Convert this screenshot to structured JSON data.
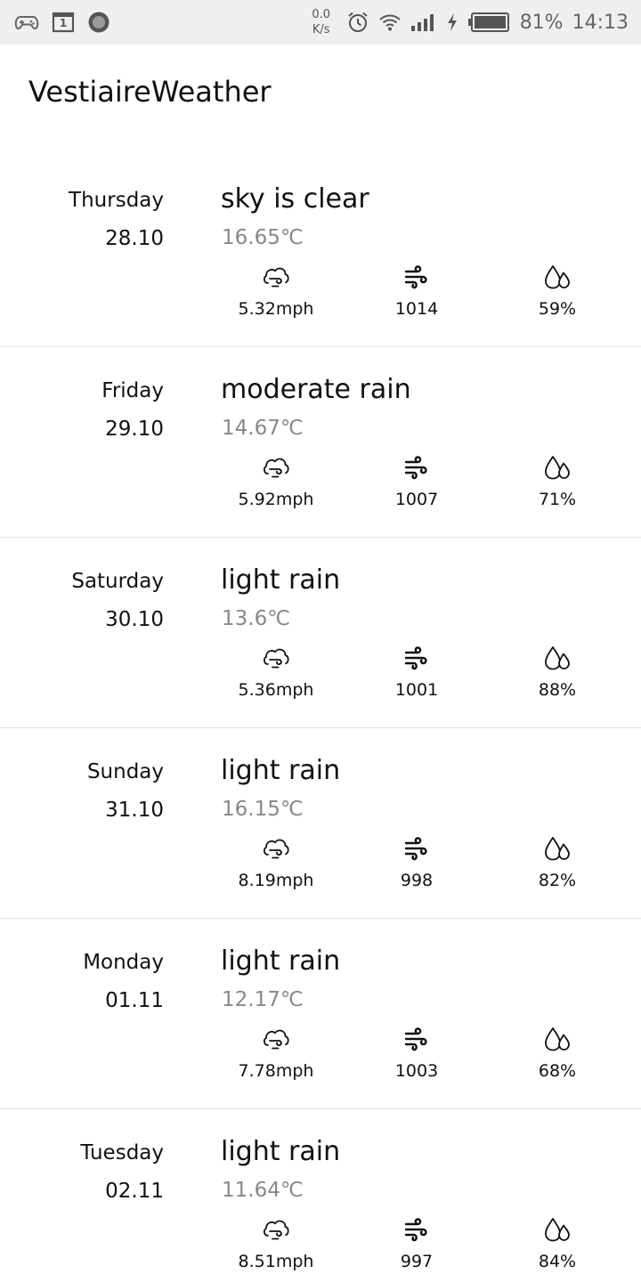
{
  "status_bar": {
    "icons_left": [
      "gamepad-icon",
      "calendar-icon",
      "record-icon"
    ],
    "calendar_day": "1",
    "net_speed_value": "0.0",
    "net_speed_unit": "K/s",
    "icons_right": [
      "alarm-icon",
      "wifi-icon",
      "signal-icon",
      "charging-icon",
      "battery-icon"
    ],
    "battery_percent": "81%",
    "time": "14:13"
  },
  "app": {
    "title": "VestiaireWeather"
  },
  "forecast": [
    {
      "day": "Thursday",
      "date": "28.10",
      "description": "sky is clear",
      "temperature": "16.65℃",
      "wind": "5.32mph",
      "pressure": "1014",
      "humidity": "59%"
    },
    {
      "day": "Friday",
      "date": "29.10",
      "description": "moderate rain",
      "temperature": "14.67℃",
      "wind": "5.92mph",
      "pressure": "1007",
      "humidity": "71%"
    },
    {
      "day": "Saturday",
      "date": "30.10",
      "description": "light rain",
      "temperature": "13.6℃",
      "wind": "5.36mph",
      "pressure": "1001",
      "humidity": "88%"
    },
    {
      "day": "Sunday",
      "date": "31.10",
      "description": "light rain",
      "temperature": "16.15℃",
      "wind": "8.19mph",
      "pressure": "998",
      "humidity": "82%"
    },
    {
      "day": "Monday",
      "date": "01.11",
      "description": "light rain",
      "temperature": "12.17℃",
      "wind": "7.78mph",
      "pressure": "1003",
      "humidity": "68%"
    },
    {
      "day": "Tuesday",
      "date": "02.11",
      "description": "light rain",
      "temperature": "11.64℃",
      "wind": "8.51mph",
      "pressure": "997",
      "humidity": "84%"
    }
  ],
  "metric_icons": {
    "wind": "wind-cloud-icon",
    "pressure": "wind-lines-icon",
    "humidity": "water-drops-icon"
  },
  "colors": {
    "text": "#111111",
    "temperature": "#888888",
    "status_bar_bg": "#efefef",
    "divider": "#e3e3e3"
  }
}
